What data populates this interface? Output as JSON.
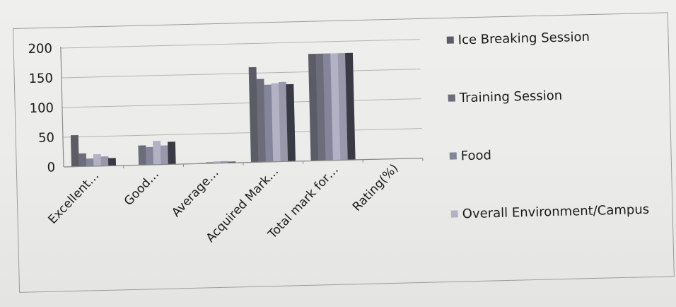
{
  "chart_data": {
    "type": "bar",
    "categories": [
      "Excellent…",
      "Good…",
      "Average…",
      "Acquired Mark…",
      "Total  mark for…",
      "Rating(%)"
    ],
    "series": [
      {
        "name": "Ice Breaking Session",
        "color": "#5c5c66",
        "values": [
          53,
          0,
          0,
          160,
          180,
          0
        ]
      },
      {
        "name": "Training Session",
        "color": "#6c6c7a",
        "values": [
          22,
          33,
          1,
          140,
          180,
          0
        ]
      },
      {
        "name": "Food",
        "color": "#84849a",
        "values": [
          13,
          30,
          2,
          130,
          180,
          0
        ]
      },
      {
        "name": "Overall Environment/Campus",
        "color": "#b2b2c4",
        "values": [
          20,
          40,
          3,
          132,
          180,
          0
        ]
      },
      {
        "name": "",
        "color": "#9898aa",
        "values": [
          16,
          32,
          3,
          134,
          180,
          0
        ]
      },
      {
        "name": "",
        "color": "#3a3a44",
        "values": [
          13,
          38,
          2,
          130,
          180,
          0
        ]
      }
    ],
    "title": "",
    "xlabel": "",
    "ylabel": "",
    "yticks": [
      "0",
      "50",
      "100",
      "150",
      "200"
    ],
    "ylim": [
      0,
      200
    ],
    "grid": true,
    "legend_position": "right"
  }
}
